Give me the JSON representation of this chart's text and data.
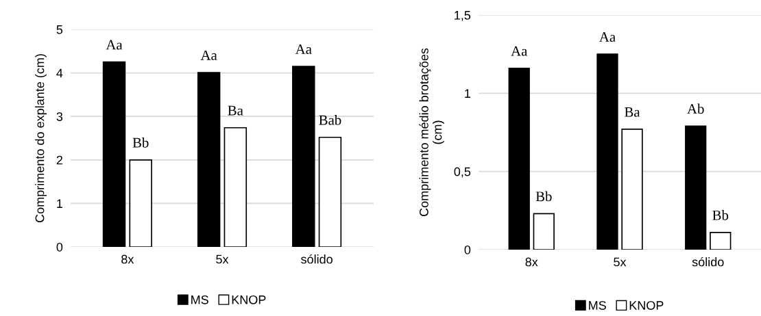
{
  "chart_data": [
    {
      "type": "bar",
      "ylabel": "Comprimento do explante (cm)",
      "categories": [
        "8x",
        "5x",
        "sólido"
      ],
      "series": [
        {
          "name": "MS",
          "color": "#000000",
          "values": [
            4.25,
            4.01,
            4.15
          ],
          "value_labels": [
            "Aa",
            "Aa",
            "Aa"
          ]
        },
        {
          "name": "KNOP",
          "color": "#ffffff",
          "values": [
            2.0,
            2.74,
            2.52
          ],
          "value_labels": [
            "Bb",
            "Ba",
            "Bab"
          ]
        }
      ],
      "ylim": [
        0,
        5
      ],
      "yticks": [
        0,
        1,
        2,
        3,
        4,
        5
      ],
      "grid": "y",
      "legend": "bottom"
    },
    {
      "type": "bar",
      "ylabel": "Comprimento médio brotações\n(cm)",
      "categories": [
        "8x",
        "5x",
        "sólido"
      ],
      "series": [
        {
          "name": "MS",
          "color": "#000000",
          "values": [
            1.16,
            1.25,
            0.79
          ],
          "value_labels": [
            "Aa",
            "Aa",
            "Ab"
          ]
        },
        {
          "name": "KNOP",
          "color": "#ffffff",
          "values": [
            0.23,
            0.77,
            0.11
          ],
          "value_labels": [
            "Bb",
            "Ba",
            "Bb"
          ]
        }
      ],
      "ylim": [
        0,
        1.5
      ],
      "yticks": [
        0,
        {
          "value": 0.5,
          "label": "0,5"
        },
        1,
        {
          "value": 1.5,
          "label": "1,5"
        }
      ],
      "grid": "y",
      "legend": "bottom"
    }
  ]
}
